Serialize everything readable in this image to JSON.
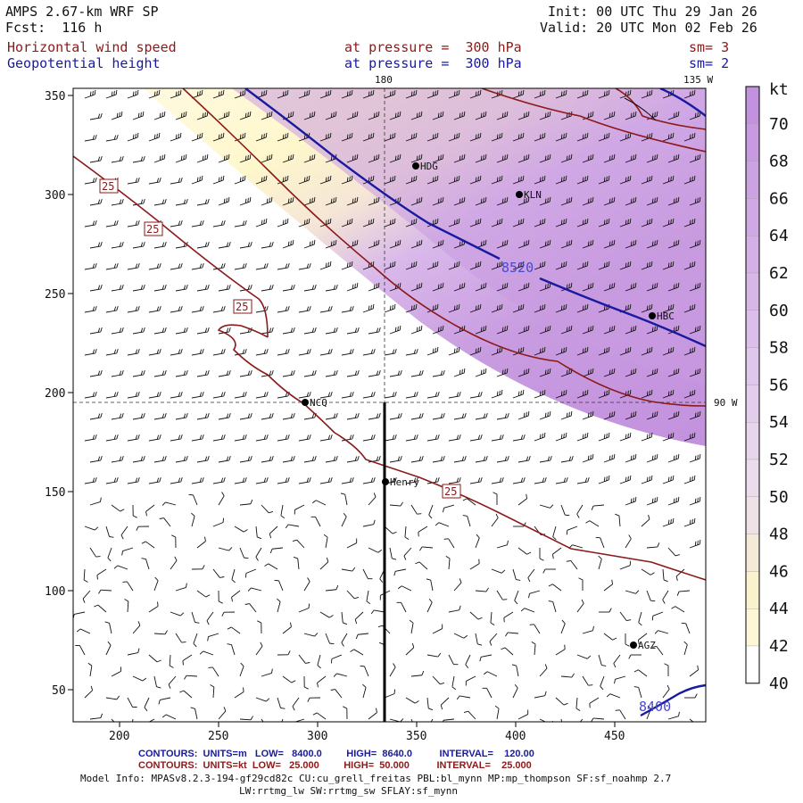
{
  "header": {
    "model": "AMPS 2.67-km WRF SP",
    "forecast": "Fcst:  116 h",
    "init": "Init: 00 UTC Thu 29 Jan 26",
    "valid": "Valid: 20 UTC Mon 02 Feb 26",
    "field1_name": "Horizontal wind speed",
    "field1_level": "at pressure =  300 hPa",
    "field1_sm": "sm= 3",
    "field2_name": "Geopotential height",
    "field2_level": "at pressure =  300 hPa",
    "field2_sm": "sm= 2"
  },
  "map": {
    "colors": {
      "wind_shading": "#c89be0",
      "wind_low": "#fffad0",
      "speed_contour": "#8b1a1a",
      "height_contour": "#1a1aa0"
    },
    "x_ticks": [
      "200",
      "250",
      "300",
      "350",
      "400",
      "450"
    ],
    "y_ticks": [
      "350",
      "300",
      "250",
      "200",
      "150",
      "100",
      "50"
    ],
    "meridian_labels": {
      "m180": "180",
      "m135w": "135 W",
      "m90w": "90 W"
    },
    "contour_labels": {
      "speed": "25",
      "height_a": "8520",
      "height_b": "8400"
    },
    "stations": [
      {
        "name": "HDG",
        "pos": [
          466,
          186
        ]
      },
      {
        "name": "KLN",
        "pos": [
          582,
          218
        ]
      },
      {
        "name": "HBC",
        "pos": [
          731,
          354
        ]
      },
      {
        "name": "NCQ",
        "pos": [
          342,
          451
        ]
      },
      {
        "name": "Henry",
        "pos": [
          432,
          540
        ]
      },
      {
        "name": "AGZ",
        "pos": [
          710,
          723
        ]
      }
    ]
  },
  "colorbar": {
    "unit": "kt",
    "labels": [
      "70",
      "68",
      "66",
      "64",
      "62",
      "60",
      "58",
      "56",
      "54",
      "52",
      "50",
      "48",
      "46",
      "44",
      "42",
      "40"
    ]
  },
  "footer": {
    "contours1": "CONTOURS:  UNITS=m   LOW=   8400.0         HIGH=  8640.0          INTERVAL=    120.00",
    "contours2": "CONTOURS:  UNITS=kt  LOW=   25.000         HIGH=  50.000          INTERVAL=    25.000",
    "model_info": "Model Info: MPASv8.2.3-194-gf29cd82c CU:cu_grell_freitas PBL:bl_mynn MP:mp_thompson SF:sf_noahmp 2.7",
    "model_info2": "LW:rrtmg_lw SW:rrtmg_sw SFLAY:sf_mynn"
  }
}
